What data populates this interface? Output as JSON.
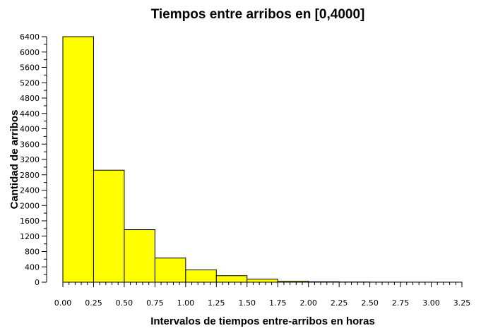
{
  "chart_data": {
    "type": "bar",
    "title": "Tiempos entre arribos en [0,4000]",
    "xlabel": "Intervalos de tiempos entre-arribos en horas",
    "ylabel": "Cantidad de arribos",
    "bin_edges": [
      0,
      0.25,
      0.5,
      0.75,
      1.0,
      1.25,
      1.5,
      1.75,
      2.0,
      2.25,
      2.5,
      2.75,
      3.0,
      3.25
    ],
    "values": [
      6400,
      2920,
      1370,
      630,
      320,
      170,
      80,
      25,
      12,
      6,
      3,
      2,
      1
    ],
    "xlim": [
      0,
      3.25
    ],
    "ylim": [
      0,
      6400
    ],
    "x_ticks": [
      "0.00",
      "0.25",
      "0.50",
      "0.75",
      "1.00",
      "1.25",
      "1.50",
      "1.75",
      "2.00",
      "2.25",
      "2.50",
      "2.75",
      "3.00",
      "3.25"
    ],
    "y_ticks": [
      "0",
      "400",
      "800",
      "1200",
      "1600",
      "2000",
      "2400",
      "2800",
      "3200",
      "3600",
      "4000",
      "4400",
      "4800",
      "5200",
      "5600",
      "6000",
      "6400"
    ],
    "bar_color": "#ffff00",
    "bar_edge_color": "#000000",
    "grid": false,
    "legend": "none"
  }
}
